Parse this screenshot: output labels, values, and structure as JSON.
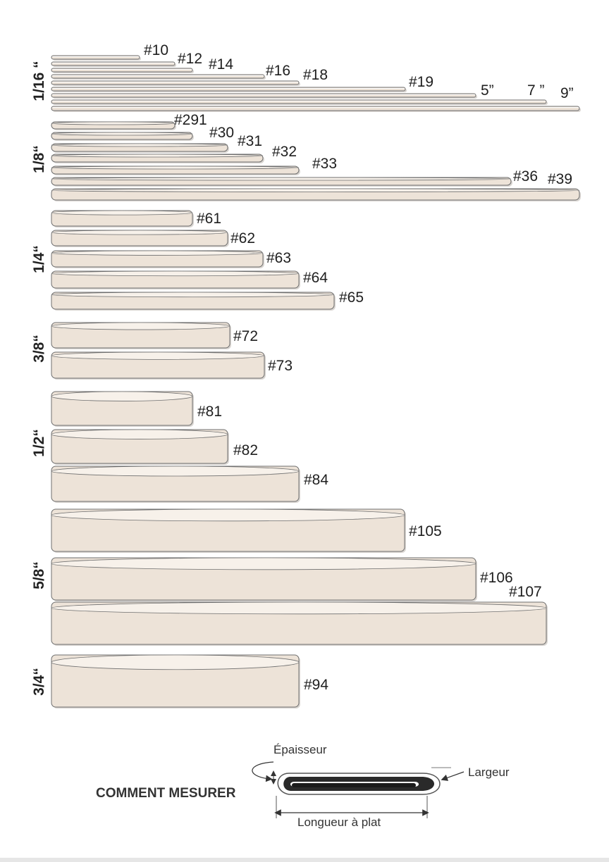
{
  "bands": [
    {
      "label": "1/16 “",
      "items": [
        "#10",
        "#12",
        "#14",
        "#16",
        "#18",
        "#19",
        "5”",
        "7 ”",
        "9”"
      ]
    },
    {
      "label": "1/8“",
      "items": [
        "#291",
        "#30",
        "#31",
        "#32",
        "#33",
        "#36",
        "#39"
      ]
    },
    {
      "label": "1/4“",
      "items": [
        "#61",
        "#62",
        "#63",
        "#64",
        "#65"
      ]
    },
    {
      "label": "3/8“",
      "items": [
        "#72",
        "#73"
      ]
    },
    {
      "label": "1/2“",
      "items": [
        "#81",
        "#82",
        "#84"
      ]
    },
    {
      "label": "5/8“",
      "items": [
        "#105",
        "#106",
        "#107"
      ]
    },
    {
      "label": "3/4“",
      "items": [
        "#94"
      ]
    }
  ],
  "measure": {
    "title": "COMMENT MESURER",
    "thickness": "Épaisseur",
    "width": "Largeur",
    "flat_length": "Longueur à plat"
  },
  "colors": {
    "band_fill": "#ede3d8",
    "band_top": "#f7f1ea",
    "outline": "#6f6f6f",
    "shadow": "#b9b2ab"
  }
}
